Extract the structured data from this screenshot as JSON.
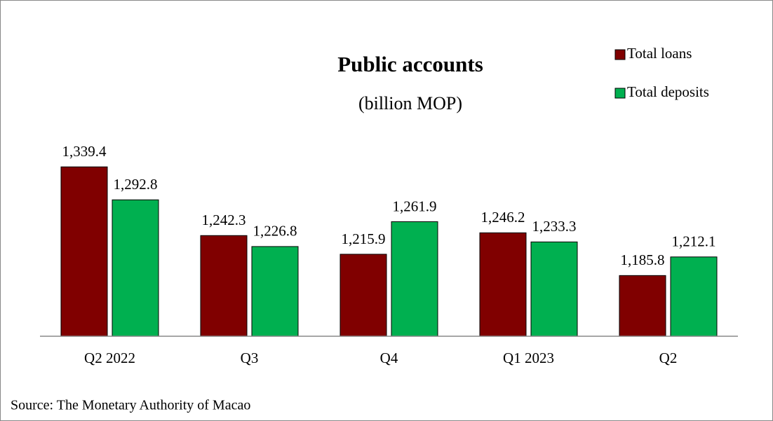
{
  "chart_data": {
    "type": "bar",
    "title": "Public accounts",
    "subtitle": "(billion MOP)",
    "source": "Source: The Monetary Authority of Macao",
    "categories": [
      "Q2 2022",
      "Q3",
      "Q4",
      "Q1 2023",
      "Q2"
    ],
    "series": [
      {
        "name": "Total loans",
        "color": "#800000",
        "values": [
          1339.4,
          1242.3,
          1215.9,
          1246.2,
          1185.8
        ],
        "value_labels": [
          "1,339.4",
          "1,242.3",
          "1,215.9",
          "1,246.2",
          "1,185.8"
        ]
      },
      {
        "name": "Total deposits",
        "color": "#00b050",
        "values": [
          1292.8,
          1226.8,
          1261.9,
          1233.3,
          1212.1
        ],
        "value_labels": [
          "1,292.8",
          "1,226.8",
          "1,261.9",
          "1,233.3",
          "1,212.1"
        ]
      }
    ],
    "ylim": [
      1100,
      1400
    ],
    "legend": "top-right"
  }
}
